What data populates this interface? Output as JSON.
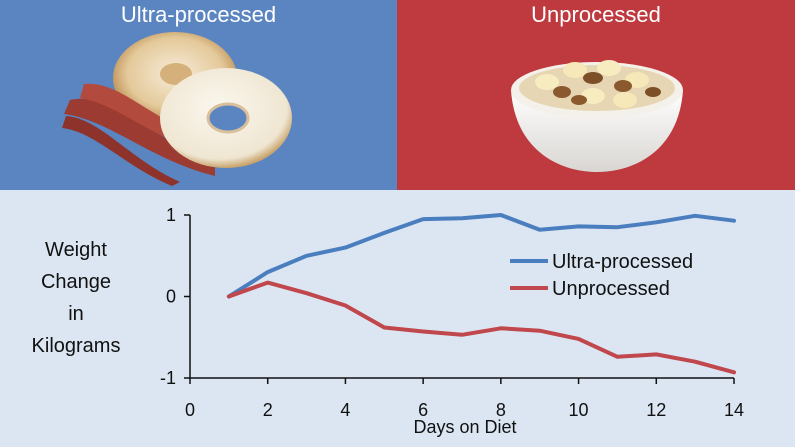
{
  "panels": {
    "left_title": "Ultra-processed",
    "right_title": "Unprocessed"
  },
  "colors": {
    "ultra_panel": "#5b85c1",
    "unprocessed_panel": "#bf3a3f",
    "ultra_line": "#4a7ebf",
    "unprocessed_line": "#c0474c",
    "chart_background": "#dce6f2"
  },
  "chart_data": {
    "type": "line",
    "title": "",
    "xlabel": "Days on Diet",
    "ylabel_lines": [
      "Weight",
      "Change",
      "in",
      "Kilograms"
    ],
    "xlim": [
      0,
      14
    ],
    "ylim": [
      -1,
      1
    ],
    "xticks": [
      "0",
      "2",
      "4",
      "6",
      "8",
      "10",
      "12",
      "14"
    ],
    "yticks": [
      "1",
      "0",
      "-1"
    ],
    "legend_position": "right",
    "x": [
      1,
      2,
      3,
      4,
      5,
      6,
      7,
      8,
      9,
      10,
      11,
      12,
      13,
      14
    ],
    "series": [
      {
        "name": "Ultra-processed",
        "values": [
          0,
          0.3,
          0.5,
          0.6,
          0.78,
          0.95,
          0.96,
          1.0,
          0.82,
          0.86,
          0.85,
          0.91,
          0.99,
          0.93
        ]
      },
      {
        "name": "Unprocessed",
        "values": [
          0,
          0.17,
          0.04,
          -0.11,
          -0.38,
          -0.43,
          -0.47,
          -0.39,
          -0.42,
          -0.52,
          -0.74,
          -0.71,
          -0.8,
          -0.93
        ]
      }
    ]
  }
}
